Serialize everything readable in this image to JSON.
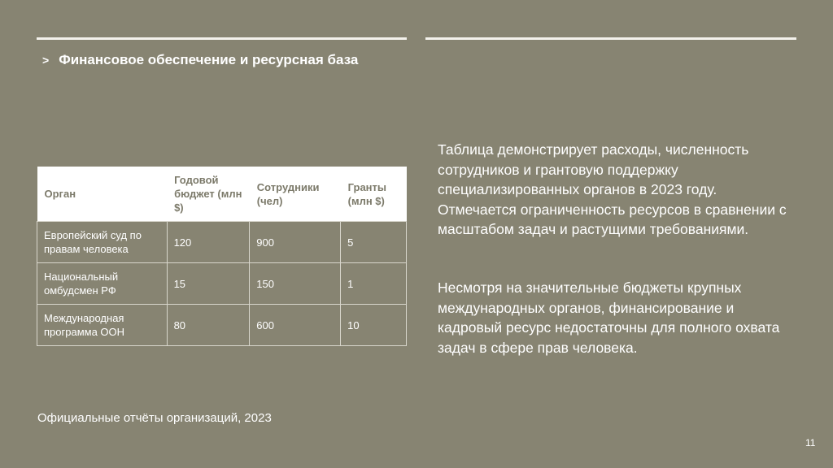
{
  "slide": {
    "title": "Финансовое обеспечение и ресурсная база",
    "chevron": ">",
    "table": {
      "headers": [
        "Орган",
        "Годовой бюджет (млн $)",
        "Сотрудники (чел)",
        "Гранты (млн $)"
      ],
      "rows": [
        [
          "Европейский суд по правам человека",
          "120",
          "900",
          "5"
        ],
        [
          "Национальный омбудсмен РФ",
          "15",
          "150",
          "1"
        ],
        [
          "Международная программа ООН",
          "80",
          "600",
          "10"
        ]
      ]
    },
    "paragraphs": [
      "Таблица демонстрирует расходы, численность сотрудников и грантовую поддержку специализированных органов в 2023 году. Отмечается ограниченность ресурсов в сравнении с масштабом задач и растущими требованиями.",
      "Несмотря на значительные бюджеты крупных международных органов, финансирование и кадровый ресурс недостаточны для полного охвата задач в сфере прав человека."
    ],
    "source": "Официальные отчёты организаций, 2023",
    "page_number": "11"
  },
  "colors": {
    "background": "#878472",
    "header_text": "#7c7a6a",
    "text": "#ffffff"
  }
}
